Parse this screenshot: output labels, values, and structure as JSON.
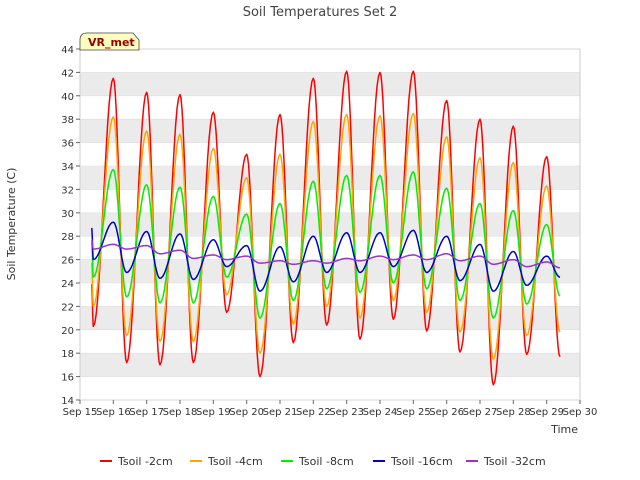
{
  "chart_data": {
    "type": "line",
    "title": "Soil Temperatures Set 2",
    "xlabel": "Time",
    "ylabel": "Soil Temperature (C)",
    "annotation": "VR_met",
    "x_ticks": [
      "Sep 15",
      "Sep 16",
      "Sep 17",
      "Sep 18",
      "Sep 19",
      "Sep 20",
      "Sep 21",
      "Sep 22",
      "Sep 23",
      "Sep 24",
      "Sep 25",
      "Sep 26",
      "Sep 27",
      "Sep 28",
      "Sep 29",
      "Sep 30"
    ],
    "x_range": [
      15,
      30
    ],
    "ylim": [
      14,
      44
    ],
    "y_ticks": [
      14,
      16,
      18,
      20,
      22,
      24,
      26,
      28,
      30,
      32,
      34,
      36,
      38,
      40,
      42,
      44
    ],
    "grid": "horizontal bands",
    "legend_position": "bottom",
    "day_peak_time": 0.6,
    "series": [
      {
        "name": "Tsoil -2cm",
        "color": "#ff0000",
        "mins": [
          20.3,
          17.2,
          17.0,
          17.2,
          21.5,
          16.0,
          18.9,
          20.4,
          19.2,
          20.9,
          19.9,
          18.1,
          15.3,
          17.9,
          17.7
        ],
        "maxs": [
          41.5,
          40.3,
          40.1,
          38.6,
          35.0,
          38.4,
          41.5,
          42.1,
          42.0,
          42.1,
          39.6,
          38.0,
          37.4,
          34.8
        ],
        "start": 23.9
      },
      {
        "name": "Tsoil -4cm",
        "color": "#ffa500",
        "mins": [
          22.0,
          19.5,
          19.0,
          19.0,
          23.0,
          18.0,
          20.5,
          22.0,
          21.0,
          22.5,
          21.5,
          19.8,
          17.5,
          19.5,
          19.8
        ],
        "maxs": [
          38.2,
          37.0,
          36.7,
          35.5,
          33.0,
          35.0,
          37.8,
          38.4,
          38.3,
          38.5,
          36.5,
          34.7,
          34.3,
          32.3
        ],
        "start": 25.7
      },
      {
        "name": "Tsoil -8cm",
        "color": "#00ee00",
        "mins": [
          24.5,
          22.8,
          22.3,
          22.3,
          24.5,
          21.0,
          22.5,
          23.5,
          23.2,
          24.0,
          23.5,
          22.5,
          21.0,
          22.2,
          22.9
        ],
        "maxs": [
          33.7,
          32.4,
          32.2,
          31.4,
          29.9,
          30.8,
          32.7,
          33.2,
          33.2,
          33.5,
          32.1,
          30.8,
          30.2,
          29.0
        ],
        "start": 27.5
      },
      {
        "name": "Tsoil -16cm",
        "color": "#0000cc",
        "mins": [
          26.0,
          24.9,
          24.4,
          24.3,
          25.4,
          23.3,
          24.1,
          24.9,
          24.9,
          25.4,
          24.9,
          24.2,
          23.3,
          23.8,
          24.5
        ],
        "maxs": [
          29.2,
          28.4,
          28.2,
          27.7,
          27.2,
          27.1,
          28.0,
          28.3,
          28.3,
          28.5,
          28.0,
          27.3,
          26.7,
          26.3
        ],
        "start": 28.7
      },
      {
        "name": "Tsoil -32cm",
        "color": "#9933cc",
        "mins": [
          26.9,
          26.9,
          26.5,
          26.1,
          26.0,
          25.7,
          25.6,
          25.7,
          25.9,
          26.0,
          26.0,
          25.9,
          25.6,
          25.4,
          25.3
        ],
        "maxs": [
          27.3,
          27.2,
          26.8,
          26.4,
          26.3,
          25.9,
          25.9,
          26.1,
          26.3,
          26.4,
          26.5,
          26.3,
          26.0,
          25.8
        ],
        "start": 27.7
      }
    ]
  }
}
